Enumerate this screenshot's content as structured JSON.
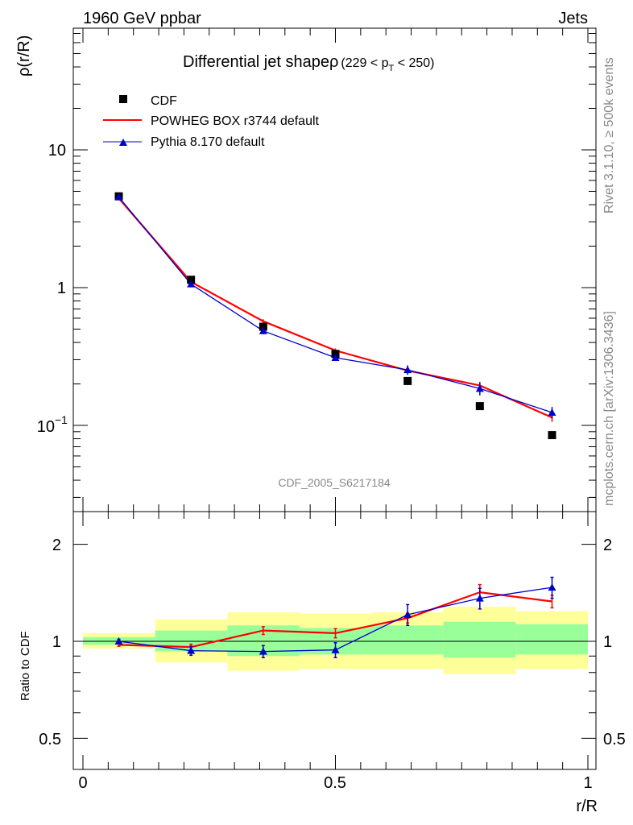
{
  "header": {
    "left": "1960 GeV ppbar",
    "right": "Jets"
  },
  "side_labels": {
    "rivet": "Rivet 3.1.10, ≥ 500k events",
    "mcplots": "mcplots.cern.ch [arXiv:1306.3436]"
  },
  "chart_data": [
    {
      "type": "line",
      "title_main": "Differential jet shape",
      "title_rho": "ρ",
      "title_range_left": "(229 < p",
      "title_range_sub": "T",
      "title_range_right": " < 250)",
      "ylabel": "ρ(r/R)",
      "xlabel": "",
      "y_scale": "log",
      "ylim": [
        0.025,
        70
      ],
      "xlim": [
        -0.02,
        1.0
      ],
      "watermark": "CDF_2005_S6217184",
      "yticks": [
        {
          "value": 10,
          "base": "10",
          "exp": ""
        },
        {
          "value": 1,
          "base": "1",
          "exp": ""
        },
        {
          "value": 0.1,
          "base": "10",
          "exp": "−1"
        }
      ],
      "legend_position": "top-left",
      "series": [
        {
          "name": "CDF",
          "kind": "points",
          "marker": "square",
          "color": "#000000",
          "x": [
            0.071,
            0.214,
            0.357,
            0.5,
            0.643,
            0.786,
            0.929
          ],
          "y": [
            4.6,
            1.14,
            0.52,
            0.33,
            0.21,
            0.138,
            0.085
          ]
        },
        {
          "name": "POWHEG BOX r3744 default",
          "kind": "line",
          "color": "#ff0000",
          "x": [
            0.071,
            0.214,
            0.357,
            0.5,
            0.643,
            0.786,
            0.929
          ],
          "y": [
            4.45,
            1.1,
            0.57,
            0.35,
            0.25,
            0.195,
            0.114
          ],
          "err": [
            0.05,
            0.02,
            0.02,
            0.012,
            0.01,
            0.012,
            0.008
          ]
        },
        {
          "name": "Pythia 8.170 default",
          "kind": "line",
          "marker": "triangle",
          "color": "#0000cc",
          "x": [
            0.071,
            0.214,
            0.357,
            0.5,
            0.643,
            0.786,
            0.929
          ],
          "y": [
            4.55,
            1.06,
            0.485,
            0.31,
            0.253,
            0.185,
            0.124
          ],
          "err": [
            0.06,
            0.03,
            0.025,
            0.015,
            0.02,
            0.02,
            0.012
          ]
        }
      ]
    },
    {
      "type": "line",
      "ylabel": "Ratio to CDF",
      "xlabel": "r/R",
      "y_scale": "log",
      "ylim": [
        0.41,
        2.4
      ],
      "xlim": [
        -0.02,
        1.0
      ],
      "yticks": [
        {
          "value": 2,
          "label": "2"
        },
        {
          "value": 1,
          "label": "1"
        },
        {
          "value": 0.5,
          "label": "0.5"
        }
      ],
      "xticks": [
        {
          "value": 0,
          "label": "0"
        },
        {
          "value": 0.5,
          "label": "0.5"
        },
        {
          "value": 1,
          "label": "1"
        }
      ],
      "bands": {
        "edges": [
          0.0,
          0.143,
          0.286,
          0.429,
          0.571,
          0.714,
          0.857,
          1.0
        ],
        "yellow": [
          [
            0.95,
            1.06
          ],
          [
            0.86,
            1.17
          ],
          [
            0.81,
            1.23
          ],
          [
            0.82,
            1.22
          ],
          [
            0.82,
            1.23
          ],
          [
            0.79,
            1.28
          ],
          [
            0.82,
            1.24
          ]
        ],
        "green": [
          [
            0.975,
            1.03
          ],
          [
            0.93,
            1.08
          ],
          [
            0.9,
            1.12
          ],
          [
            0.91,
            1.1
          ],
          [
            0.91,
            1.12
          ],
          [
            0.89,
            1.15
          ],
          [
            0.91,
            1.13
          ]
        ],
        "yellow_color": "#ffff99",
        "green_color": "#99ff99"
      },
      "reference_line": 1,
      "series": [
        {
          "name": "POWHEG BOX r3744 default",
          "color": "#ff0000",
          "x": [
            0.071,
            0.214,
            0.357,
            0.5,
            0.643,
            0.786,
            0.929
          ],
          "y": [
            0.975,
            0.96,
            1.08,
            1.06,
            1.18,
            1.42,
            1.33
          ],
          "err": [
            0.01,
            0.02,
            0.03,
            0.035,
            0.04,
            0.08,
            0.06
          ]
        },
        {
          "name": "Pythia 8.170 default",
          "color": "#0000cc",
          "x": [
            0.071,
            0.214,
            0.357,
            0.5,
            0.643,
            0.786,
            0.929
          ],
          "y": [
            1.0,
            0.935,
            0.93,
            0.94,
            1.21,
            1.36,
            1.47
          ],
          "err": [
            0.015,
            0.03,
            0.04,
            0.05,
            0.09,
            0.1,
            0.11
          ]
        }
      ]
    }
  ]
}
